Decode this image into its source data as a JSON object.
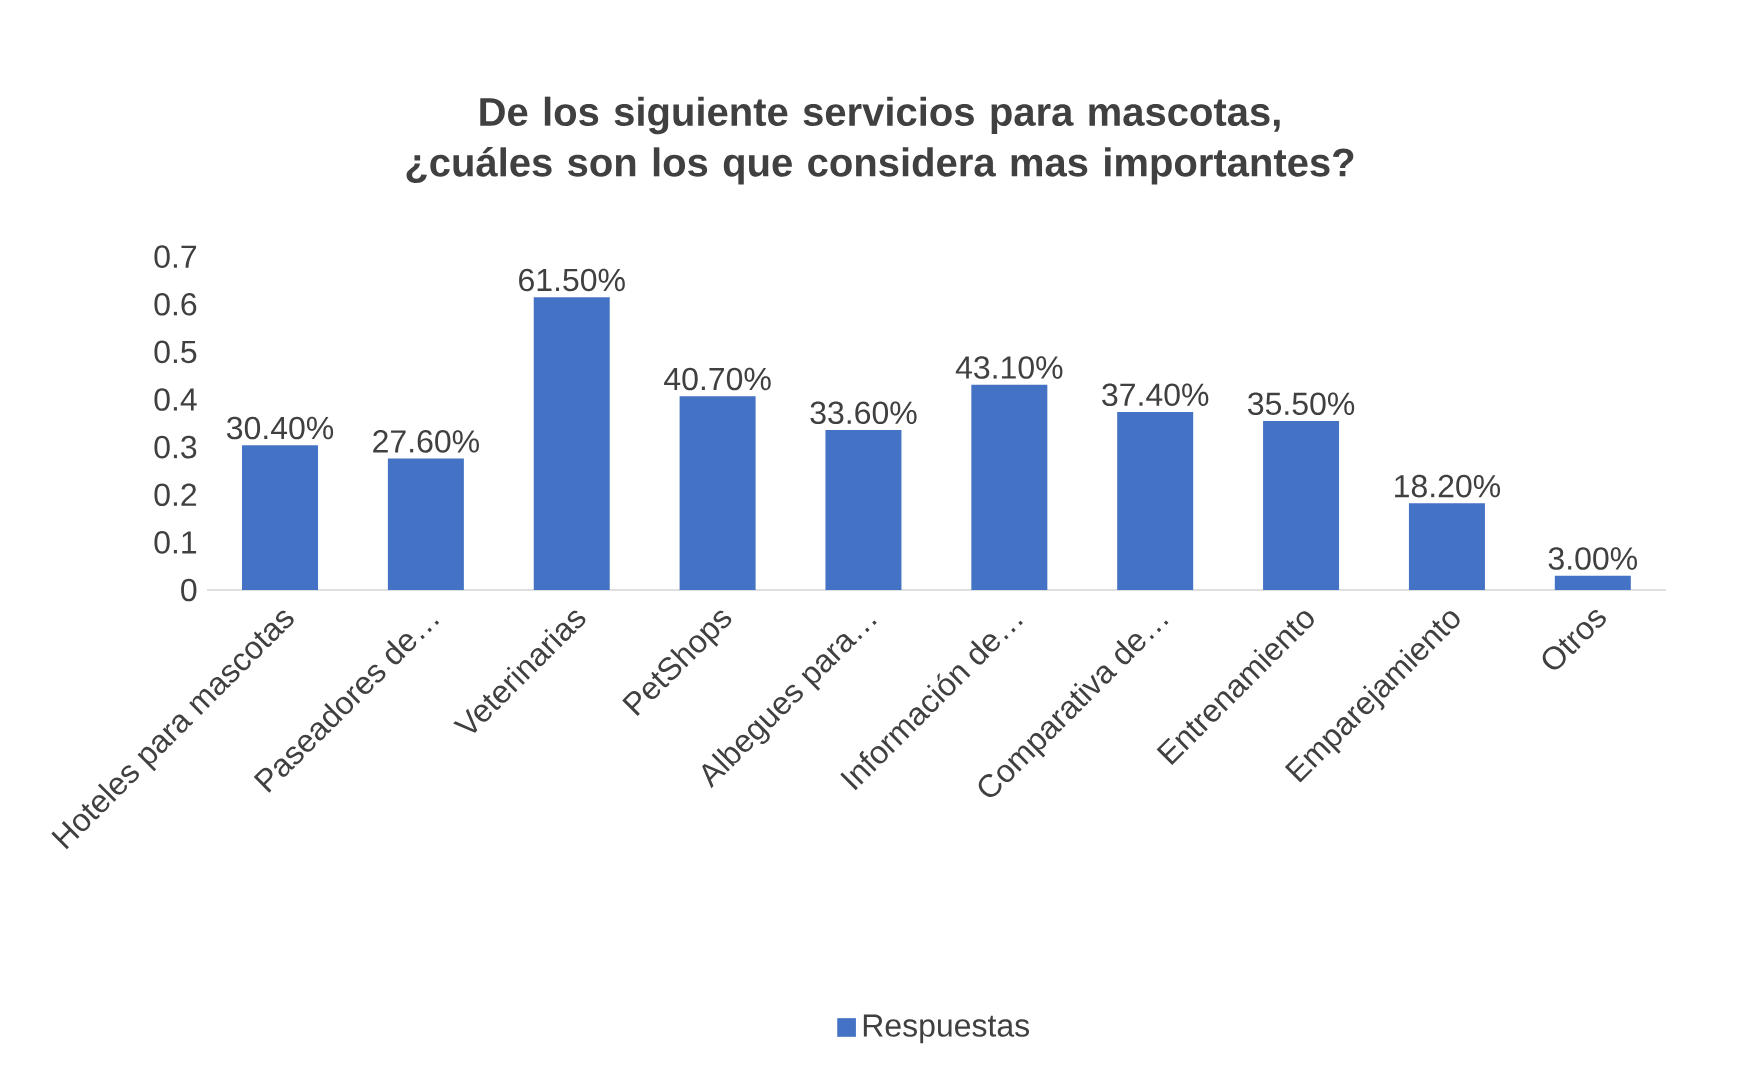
{
  "chart_data": {
    "type": "bar",
    "title": "De los siguiente servicios para mascotas, ¿cuáles son los que considera mas importantes?",
    "categories": [
      "Hoteles para mascotas",
      "Paseadores de…",
      "Veterinarias",
      "PetShops",
      "Albegues para…",
      "Información de…",
      "Comparativa de…",
      "Entrenamiento",
      "Emparejamiento",
      "Otros"
    ],
    "series": [
      {
        "name": "Respuestas",
        "color": "#4472c4",
        "values": [
          0.304,
          0.276,
          0.615,
          0.407,
          0.336,
          0.431,
          0.374,
          0.355,
          0.182,
          0.03
        ],
        "value_labels": [
          "30.40%",
          "27.60%",
          "61.50%",
          "40.70%",
          "33.60%",
          "43.10%",
          "37.40%",
          "35.50%",
          "18.20%",
          "3.00%"
        ]
      }
    ],
    "ylim": [
      0,
      0.7
    ],
    "yticks": [
      0,
      0.1,
      0.2,
      0.3,
      0.4,
      0.5,
      0.6,
      0.7
    ],
    "grid": false,
    "legend": "bottom"
  }
}
